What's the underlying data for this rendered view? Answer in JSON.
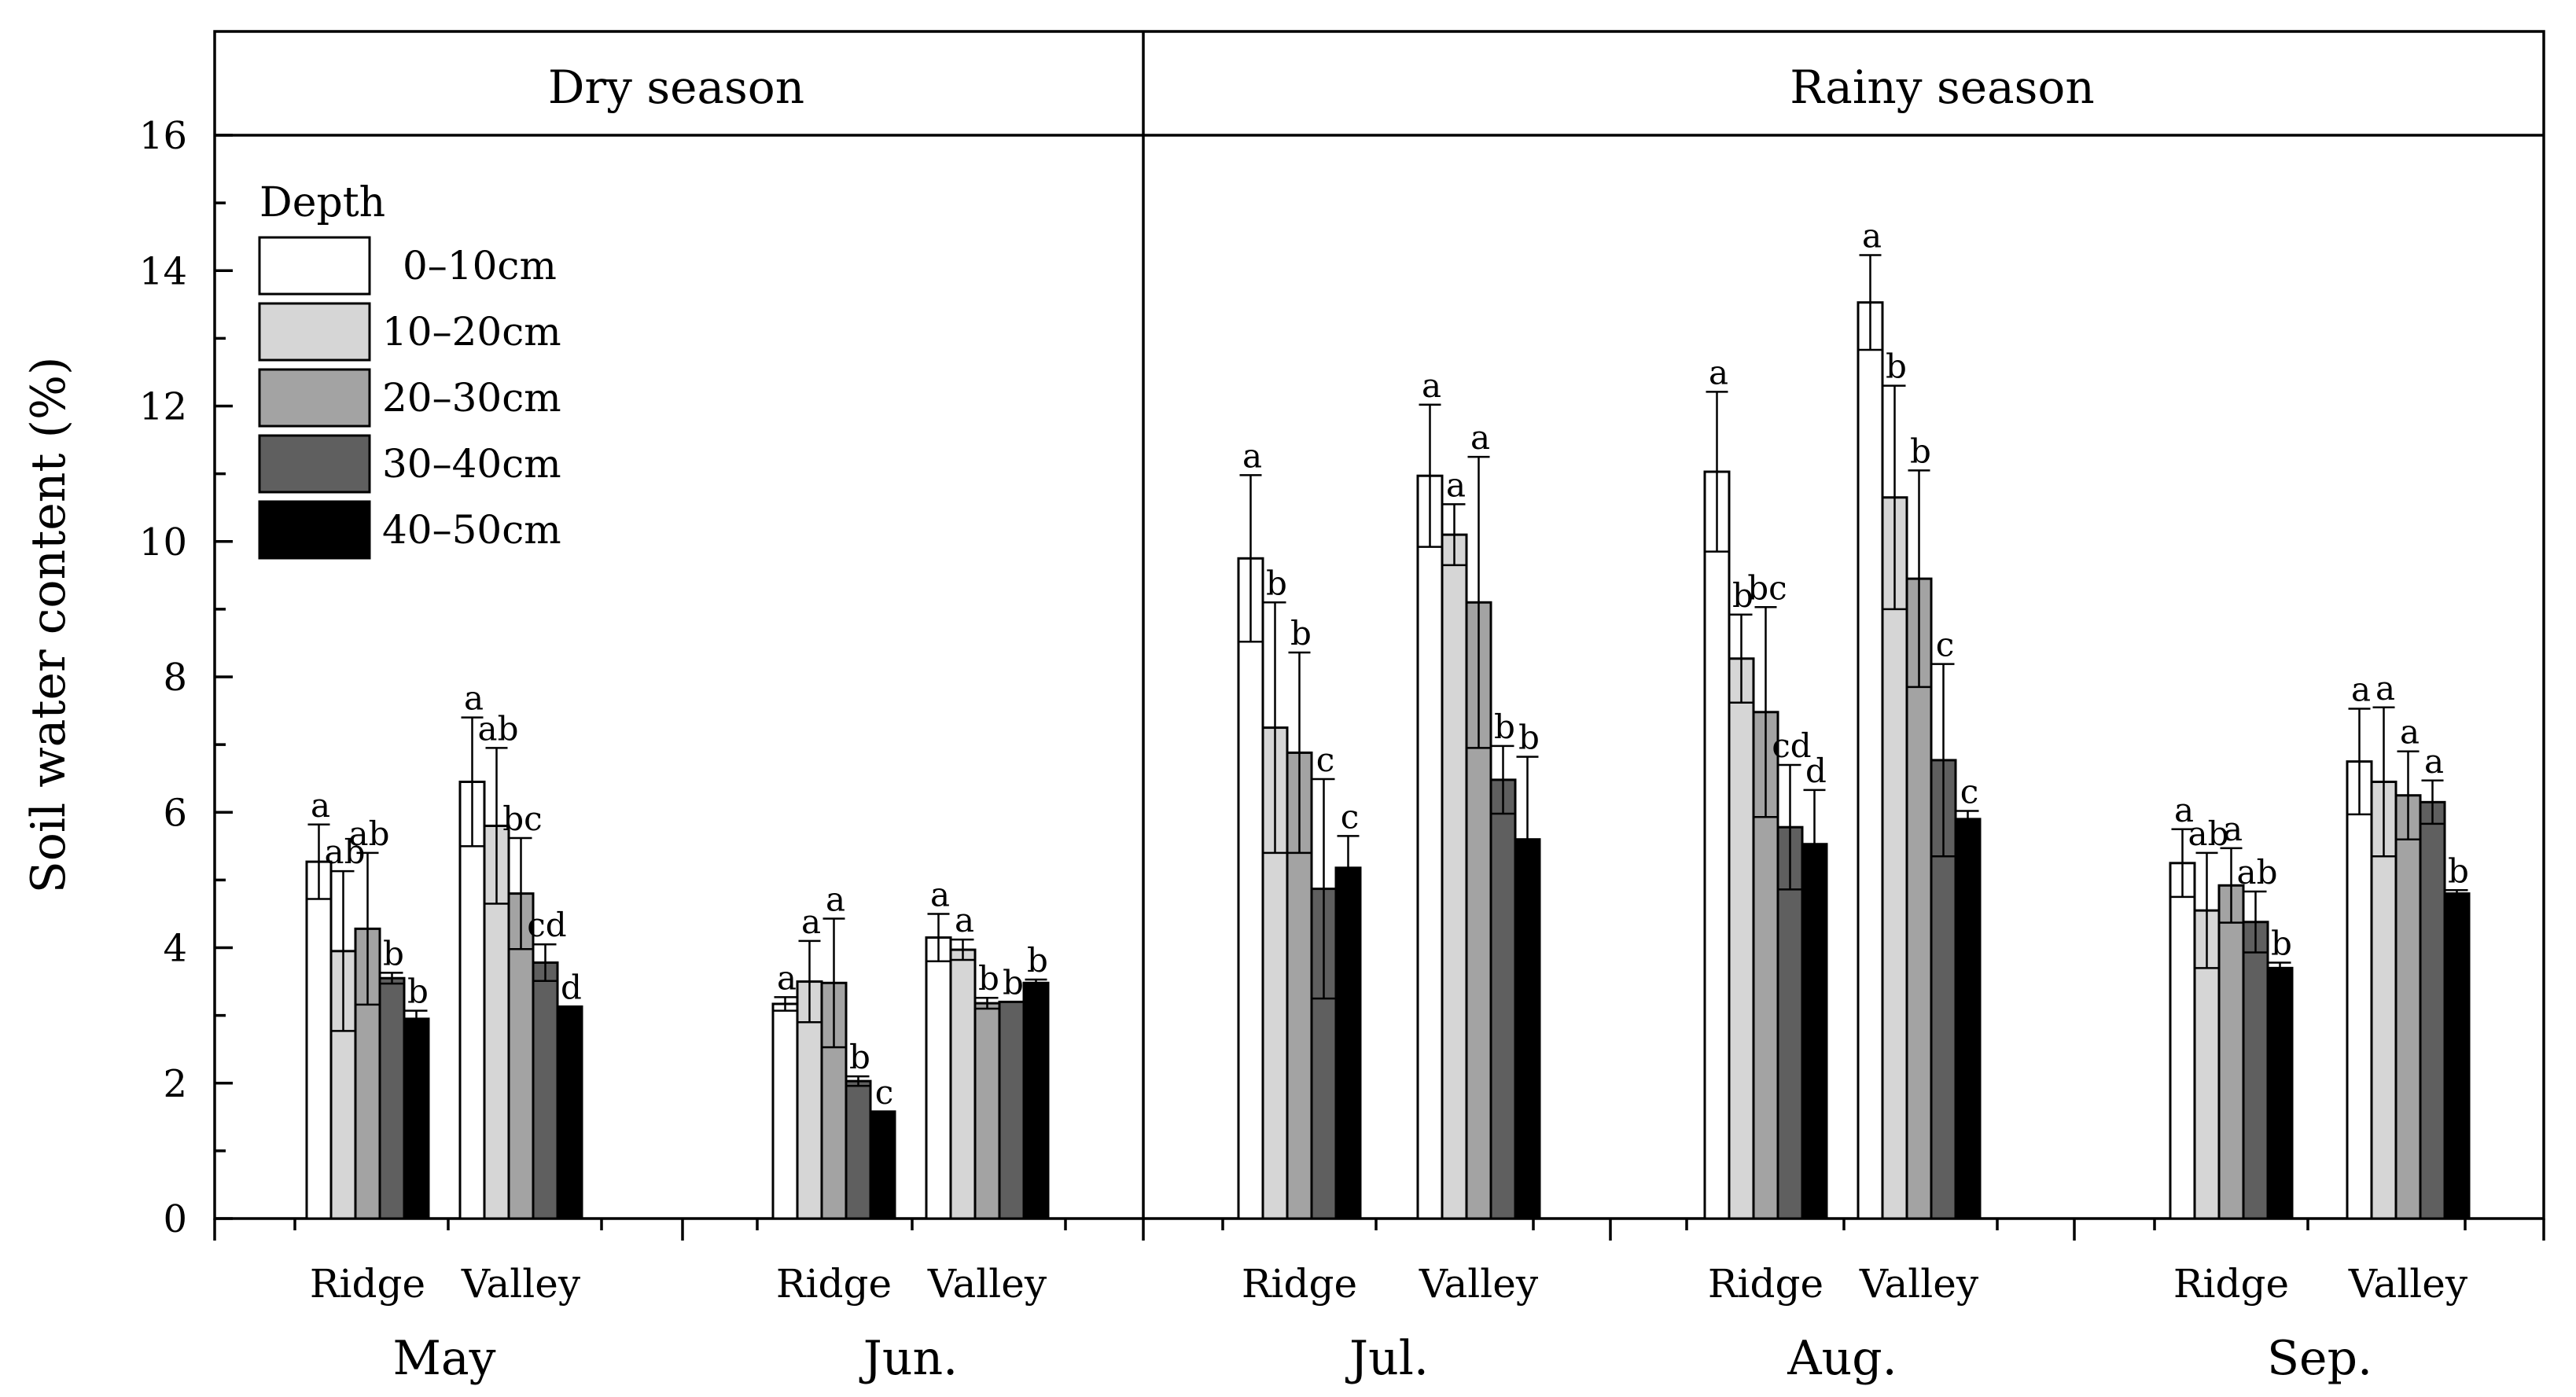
{
  "chart_data": {
    "type": "bar",
    "ylabel": "Soil water content (%)",
    "ylim": [
      0,
      17.5
    ],
    "yticks": [
      "0",
      "2",
      "4",
      "6",
      "8",
      "10",
      "12",
      "14",
      "16"
    ],
    "legend": {
      "title": "Depth",
      "position": "top-left",
      "entries": [
        {
          "label": "0–10cm",
          "color": "#ffffff"
        },
        {
          "label": "10–20cm",
          "color": "#d6d6d6"
        },
        {
          "label": "20–30cm",
          "color": "#a3a3a3"
        },
        {
          "label": "30–40cm",
          "color": "#5f5f5f"
        },
        {
          "label": "40–50cm",
          "color": "#000000"
        }
      ]
    },
    "panels": [
      {
        "label": "Dry season",
        "months": [
          "May",
          "Jun."
        ]
      },
      {
        "label": "Rainy season",
        "months": [
          "Jul.",
          "Aug.",
          "Sep."
        ]
      }
    ],
    "groups": [
      {
        "month": "May",
        "site": "Ridge",
        "values": [
          5.27,
          3.95,
          4.28,
          3.55,
          2.95
        ],
        "errors": [
          0.55,
          1.18,
          1.12,
          0.08,
          0.12
        ],
        "letters": [
          "a",
          "ab",
          "ab",
          "b",
          "b"
        ]
      },
      {
        "month": "May",
        "site": "Valley",
        "values": [
          6.45,
          5.8,
          4.8,
          3.78,
          3.13
        ],
        "errors": [
          0.95,
          1.15,
          0.82,
          0.27,
          0.0
        ],
        "letters": [
          "a",
          "ab",
          "bc",
          "cd",
          "d"
        ]
      },
      {
        "month": "Jun.",
        "site": "Ridge",
        "values": [
          3.17,
          3.5,
          3.48,
          2.03,
          1.58
        ],
        "errors": [
          0.1,
          0.6,
          0.95,
          0.07,
          0.0
        ],
        "letters": [
          "a",
          "a",
          "a",
          "b",
          "c"
        ]
      },
      {
        "month": "Jun.",
        "site": "Valley",
        "values": [
          4.15,
          3.97,
          3.18,
          3.2,
          3.48
        ],
        "errors": [
          0.35,
          0.15,
          0.08,
          0.0,
          0.05
        ],
        "letters": [
          "a",
          "a",
          "b",
          "b",
          "b"
        ]
      },
      {
        "month": "Jul.",
        "site": "Ridge",
        "values": [
          9.75,
          7.25,
          6.88,
          4.87,
          5.18
        ],
        "errors": [
          1.23,
          1.85,
          1.48,
          1.62,
          0.47
        ],
        "letters": [
          "a",
          "b",
          "b",
          "c",
          "c"
        ]
      },
      {
        "month": "Jul.",
        "site": "Valley",
        "values": [
          10.97,
          10.1,
          9.1,
          6.48,
          5.6
        ],
        "errors": [
          1.05,
          0.45,
          2.15,
          0.5,
          1.22
        ],
        "letters": [
          "a",
          "a",
          "a",
          "b",
          "b"
        ]
      },
      {
        "month": "Aug.",
        "site": "Ridge",
        "values": [
          11.03,
          8.27,
          7.48,
          5.78,
          5.53
        ],
        "errors": [
          1.18,
          0.65,
          1.55,
          0.92,
          0.8
        ],
        "letters": [
          "a",
          "b",
          "bc",
          "cd",
          "d"
        ]
      },
      {
        "month": "Aug.",
        "site": "Valley",
        "values": [
          13.53,
          10.65,
          9.45,
          6.77,
          5.9
        ],
        "errors": [
          0.7,
          1.65,
          1.6,
          1.42,
          0.12
        ],
        "letters": [
          "a",
          "b",
          "b",
          "c",
          "c"
        ]
      },
      {
        "month": "Sep.",
        "site": "Ridge",
        "values": [
          5.25,
          4.55,
          4.92,
          4.38,
          3.7
        ],
        "errors": [
          0.5,
          0.85,
          0.55,
          0.45,
          0.08
        ],
        "letters": [
          "a",
          "ab",
          "a",
          "ab",
          "b"
        ]
      },
      {
        "month": "Sep.",
        "site": "Valley",
        "values": [
          6.75,
          6.45,
          6.25,
          6.15,
          4.8
        ],
        "errors": [
          0.78,
          1.1,
          0.65,
          0.32,
          0.05
        ],
        "letters": [
          "a",
          "a",
          "a",
          "a",
          "b"
        ]
      }
    ]
  }
}
